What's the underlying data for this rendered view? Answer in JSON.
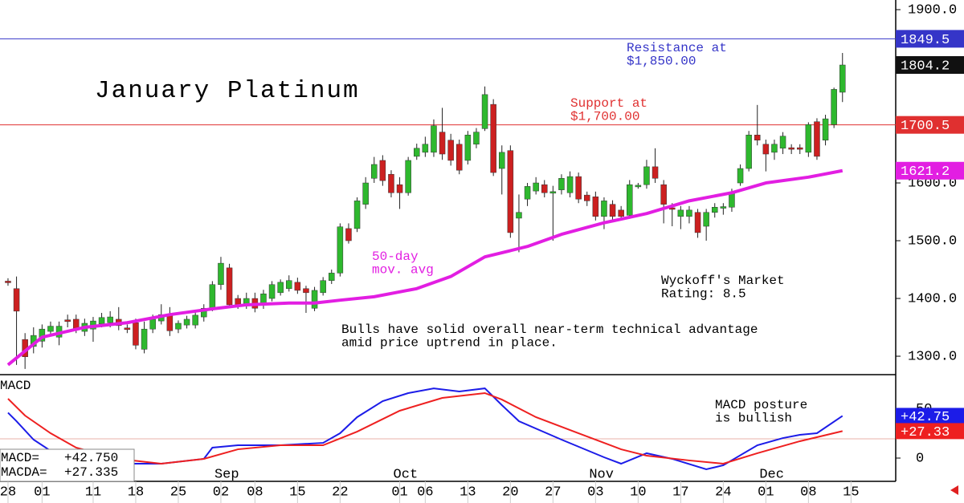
{
  "chart_data": {
    "type": "candlestick",
    "title": "January Platinum",
    "xlim": [
      -0.94,
      104.25
    ],
    "xticks": [
      {
        "value": 0,
        "label": "28"
      },
      {
        "value": 4,
        "label": "01"
      },
      {
        "value": 10,
        "label": "11"
      },
      {
        "value": 15,
        "label": "18"
      },
      {
        "value": 20,
        "label": "25"
      },
      {
        "value": 25,
        "label": "02"
      },
      {
        "value": 29,
        "label": "08"
      },
      {
        "value": 34,
        "label": "15"
      },
      {
        "value": 39,
        "label": "22"
      },
      {
        "value": 46,
        "label": "01"
      },
      {
        "value": 49,
        "label": "06"
      },
      {
        "value": 54,
        "label": "13"
      },
      {
        "value": 59,
        "label": "20"
      },
      {
        "value": 64,
        "label": "27"
      },
      {
        "value": 69,
        "label": "03"
      },
      {
        "value": 74,
        "label": "10"
      },
      {
        "value": 79,
        "label": "17"
      },
      {
        "value": 84,
        "label": "24"
      },
      {
        "value": 89,
        "label": "01"
      },
      {
        "value": 94,
        "label": "08"
      },
      {
        "value": 99,
        "label": "15"
      }
    ],
    "x_month_labels": [
      {
        "value": 25,
        "label": "Sep"
      },
      {
        "value": 46,
        "label": "Oct"
      },
      {
        "value": 69,
        "label": "Nov"
      },
      {
        "value": 89,
        "label": "Dec"
      }
    ],
    "ylim": [
      1268.1,
      1916.7
    ],
    "yticks": [
      {
        "value": 1900,
        "label": "1900.0"
      },
      {
        "value": 1600,
        "label": "1600.0"
      },
      {
        "value": 1500,
        "label": "1500.0"
      },
      {
        "value": 1400,
        "label": "1400.0"
      },
      {
        "value": 1300,
        "label": "1300.0"
      }
    ],
    "up_color": "#2eb82e",
    "down_color": "#cc2020",
    "open": [
      1430,
      1417,
      1329,
      1317,
      1326,
      1343,
      1333,
      1363,
      1364,
      1343,
      1347,
      1356,
      1358,
      1364,
      1349,
      1358,
      1312,
      1347,
      1361,
      1372,
      1347,
      1354,
      1354,
      1368,
      1382,
      1424,
      1453,
      1400,
      1389,
      1400,
      1389,
      1400,
      1410,
      1417,
      1428,
      1417,
      1383,
      1410,
      1431,
      1444,
      1521,
      1521,
      1563,
      1608,
      1639,
      1615,
      1597,
      1583,
      1646,
      1653,
      1653,
      1688,
      1674,
      1667,
      1639,
      1667,
      1694,
      1736,
      1625,
      1656,
      1539,
      1572,
      1586,
      1597,
      1583,
      1588,
      1583,
      1611,
      1579,
      1576,
      1542,
      1563,
      1553,
      1544,
      1594,
      1597,
      1628,
      1597,
      1557,
      1542,
      1542,
      1549,
      1525,
      1549,
      1557,
      1558,
      1600,
      1625,
      1683,
      1667,
      1653,
      1660,
      1661,
      1661,
      1653,
      1706,
      1674,
      1701,
      1757
    ],
    "high": [
      1435,
      1438,
      1340,
      1350,
      1355,
      1360,
      1360,
      1372,
      1372,
      1365,
      1368,
      1375,
      1378,
      1385,
      1355,
      1365,
      1360,
      1372,
      1390,
      1385,
      1362,
      1370,
      1378,
      1390,
      1430,
      1472,
      1460,
      1406,
      1410,
      1410,
      1415,
      1430,
      1433,
      1440,
      1436,
      1422,
      1420,
      1437,
      1450,
      1530,
      1530,
      1575,
      1610,
      1645,
      1648,
      1622,
      1610,
      1645,
      1668,
      1680,
      1710,
      1730,
      1685,
      1675,
      1690,
      1695,
      1767,
      1745,
      1665,
      1665,
      1580,
      1600,
      1610,
      1605,
      1595,
      1615,
      1620,
      1618,
      1585,
      1585,
      1575,
      1570,
      1560,
      1605,
      1600,
      1640,
      1660,
      1605,
      1565,
      1560,
      1560,
      1555,
      1555,
      1565,
      1565,
      1590,
      1632,
      1690,
      1735,
      1675,
      1675,
      1688,
      1667,
      1667,
      1705,
      1712,
      1718,
      1765,
      1825
    ],
    "low": [
      1422,
      1285,
      1278,
      1305,
      1315,
      1335,
      1319,
      1350,
      1340,
      1335,
      1325,
      1350,
      1350,
      1345,
      1340,
      1312,
      1305,
      1340,
      1355,
      1335,
      1340,
      1348,
      1348,
      1360,
      1378,
      1415,
      1385,
      1382,
      1382,
      1376,
      1382,
      1395,
      1405,
      1412,
      1408,
      1375,
      1378,
      1405,
      1425,
      1438,
      1495,
      1515,
      1555,
      1600,
      1595,
      1575,
      1555,
      1578,
      1640,
      1645,
      1645,
      1640,
      1630,
      1615,
      1632,
      1660,
      1690,
      1612,
      1580,
      1505,
      1480,
      1560,
      1580,
      1575,
      1500,
      1580,
      1575,
      1565,
      1560,
      1535,
      1520,
      1535,
      1535,
      1538,
      1590,
      1590,
      1600,
      1530,
      1525,
      1520,
      1530,
      1505,
      1500,
      1540,
      1545,
      1550,
      1595,
      1620,
      1665,
      1620,
      1640,
      1650,
      1650,
      1650,
      1645,
      1640,
      1665,
      1695,
      1740
    ],
    "close": [
      1428,
      1378,
      1299,
      1336,
      1347,
      1352,
      1352,
      1360,
      1347,
      1357,
      1361,
      1367,
      1368,
      1353,
      1347,
      1319,
      1347,
      1364,
      1372,
      1344,
      1357,
      1364,
      1371,
      1383,
      1424,
      1461,
      1389,
      1389,
      1400,
      1383,
      1408,
      1424,
      1428,
      1431,
      1414,
      1410,
      1414,
      1431,
      1444,
      1524,
      1500,
      1569,
      1600,
      1632,
      1604,
      1583,
      1583,
      1639,
      1660,
      1667,
      1699,
      1650,
      1639,
      1622,
      1683,
      1688,
      1753,
      1618,
      1653,
      1514,
      1549,
      1594,
      1600,
      1583,
      1585,
      1608,
      1611,
      1572,
      1569,
      1542,
      1569,
      1542,
      1542,
      1597,
      1596,
      1628,
      1608,
      1563,
      1555,
      1553,
      1553,
      1514,
      1549,
      1558,
      1559,
      1583,
      1625,
      1683,
      1674,
      1650,
      1667,
      1681,
      1659,
      1659,
      1701,
      1646,
      1711,
      1762,
      1804.2
    ],
    "last_close_label": "1804.2",
    "moving_average": {
      "label": [
        "50-day",
        "mov. avg"
      ],
      "color": "#e21ee2",
      "x": [
        0,
        4,
        9,
        14,
        19,
        24,
        28,
        33,
        36,
        39,
        43,
        48,
        52,
        56,
        61,
        65,
        70,
        75,
        80,
        85,
        89,
        94,
        98
      ],
      "values": [
        1285,
        1333,
        1350,
        1358,
        1372,
        1382,
        1389,
        1392,
        1392,
        1397,
        1403,
        1417,
        1438,
        1472,
        1490,
        1511,
        1531,
        1547,
        1569,
        1583,
        1600,
        1610,
        1621.2
      ],
      "value_label": "1621.2"
    },
    "resistance": {
      "value": 1849.5,
      "value_label": "1849.5",
      "color": "#3535c8",
      "text": [
        "Resistance at",
        "$1,850.00"
      ]
    },
    "support": {
      "value": 1700.5,
      "value_label": "1700.5",
      "color": "#e03030",
      "text": [
        "Support at",
        "$1,700.00"
      ]
    },
    "annotations": [
      {
        "text": [
          "Wyckoff's Market",
          "Rating: 8.5"
        ]
      },
      {
        "text": [
          "Bulls have solid overall near-term technical advantage",
          "amid price uptrend in place."
        ]
      }
    ],
    "macd": {
      "title": "MACD",
      "ylim": [
        -23.6,
        84.6
      ],
      "yticks": [
        0,
        50
      ],
      "annotation": [
        "MACD posture",
        "is bullish"
      ],
      "series": [
        {
          "name": "MACD=",
          "color": "#1c1ce8",
          "legend_label": "+42.750",
          "value_label": "+42.75",
          "x": [
            0,
            1,
            3,
            5,
            8,
            13,
            18,
            23,
            24,
            27,
            32,
            37,
            39,
            41,
            44,
            47,
            50,
            53,
            56,
            58,
            60,
            65,
            70,
            72,
            75,
            78,
            82,
            84,
            88,
            91,
            93,
            95,
            98
          ],
          "values": [
            46,
            37.4,
            18.7,
            7.3,
            -0.8,
            -5.7,
            -5.7,
            -0.8,
            10.6,
            13,
            13,
            15.4,
            25.2,
            41.5,
            57.7,
            65.9,
            70.7,
            67.5,
            70.7,
            53.7,
            37.4,
            18.7,
            0.8,
            -5.7,
            4.9,
            -0.8,
            -11.4,
            -7.3,
            13,
            20.3,
            23.6,
            25.2,
            42.75
          ]
        },
        {
          "name": "MACDA=",
          "color": "#ee2020",
          "legend_label": "+27.335",
          "value_label": "+27.33",
          "x": [
            0,
            2,
            5,
            8,
            13,
            18,
            23,
            27,
            32,
            37,
            41,
            46,
            51,
            56,
            58,
            62,
            67,
            72,
            75,
            80,
            84,
            88,
            93,
            98
          ],
          "values": [
            60.2,
            43.1,
            25.2,
            10.6,
            -0.8,
            -5.7,
            -0.8,
            8.9,
            13,
            13,
            26.8,
            48,
            61,
            65.9,
            59.3,
            41.5,
            25.2,
            8.9,
            2.4,
            -2.4,
            -5.7,
            4.9,
            17.1,
            27.335
          ]
        }
      ]
    }
  }
}
